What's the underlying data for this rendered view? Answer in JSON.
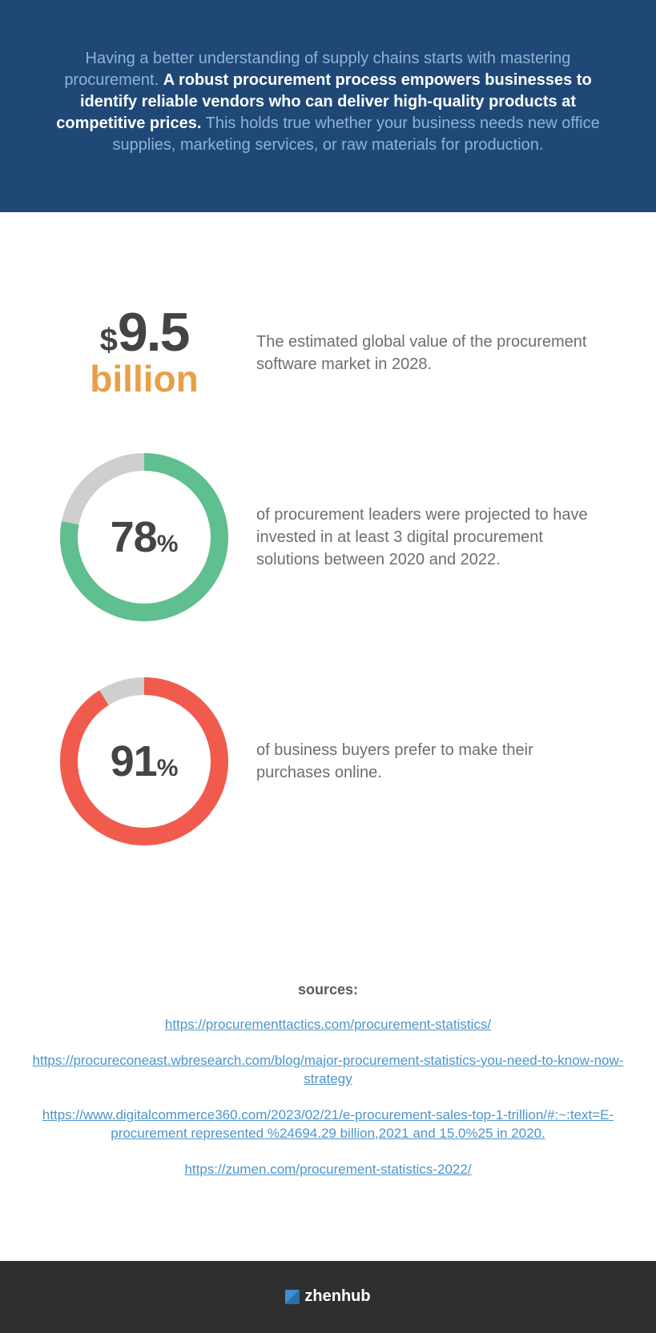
{
  "header": {
    "text_part1": "Having a better understanding of supply chains starts with mastering procurement. ",
    "text_bold": "A robust procurement process empowers businesses to identify reliable vendors who can deliver high-quality products at competitive prices.",
    "text_part2": " This holds true whether your business needs new office supplies, marketing services, or raw materials for production.",
    "background": "#1f4876",
    "text_color_light": "#8db3d6",
    "text_color_bold": "#ffffff",
    "font_size": 20
  },
  "stat1": {
    "currency": "$",
    "value": "9.5",
    "unit": "billion",
    "description": "The estimated global value of the procurement software market in 2028.",
    "value_color": "#444444",
    "unit_color": "#e7a048",
    "value_fontsize": 68,
    "unit_fontsize": 46
  },
  "stat2": {
    "type": "donut",
    "percent": 78,
    "label_number": "78",
    "label_pct": "%",
    "description": "of procurement leaders were projected to have invested in at least 3 digital procurement solutions between 2020 and 2022.",
    "ring_color": "#5fbf8f",
    "track_color": "#cfcfcf",
    "ring_width": 22,
    "diameter": 210,
    "label_color": "#444444",
    "start_angle_deg": -90
  },
  "stat3": {
    "type": "donut",
    "percent": 91,
    "label_number": "91",
    "label_pct": "%",
    "description": "of business buyers prefer to make their purchases online.",
    "ring_color": "#f15b4e",
    "track_color": "#cfcfcf",
    "ring_width": 22,
    "diameter": 210,
    "label_color": "#444444",
    "start_angle_deg": -90
  },
  "sources": {
    "title": "sources:",
    "links": [
      "https://procurementtactics.com/procurement-statistics/",
      "https://procureconeast.wbresearch.com/blog/major-procurement-statistics-you-need-to-know-now-strategy",
      "https://www.digitalcommerce360.com/2023/02/21/e-procurement-sales-top-1-trillion/#:~:text=E-procurement represented %24694.29 billion,2021 and 15.0%25 in 2020.",
      "https://zumen.com/procurement-statistics-2022/"
    ],
    "title_color": "#5a5a5a",
    "link_color": "#4c94c9",
    "font_size": 17
  },
  "footer": {
    "brand": "zhenhub",
    "background": "#2f2f2f",
    "text_color": "#ffffff",
    "icon_color": "#3d8fd1"
  },
  "body_text_color": "#6e6e6e",
  "body_font_size": 20
}
